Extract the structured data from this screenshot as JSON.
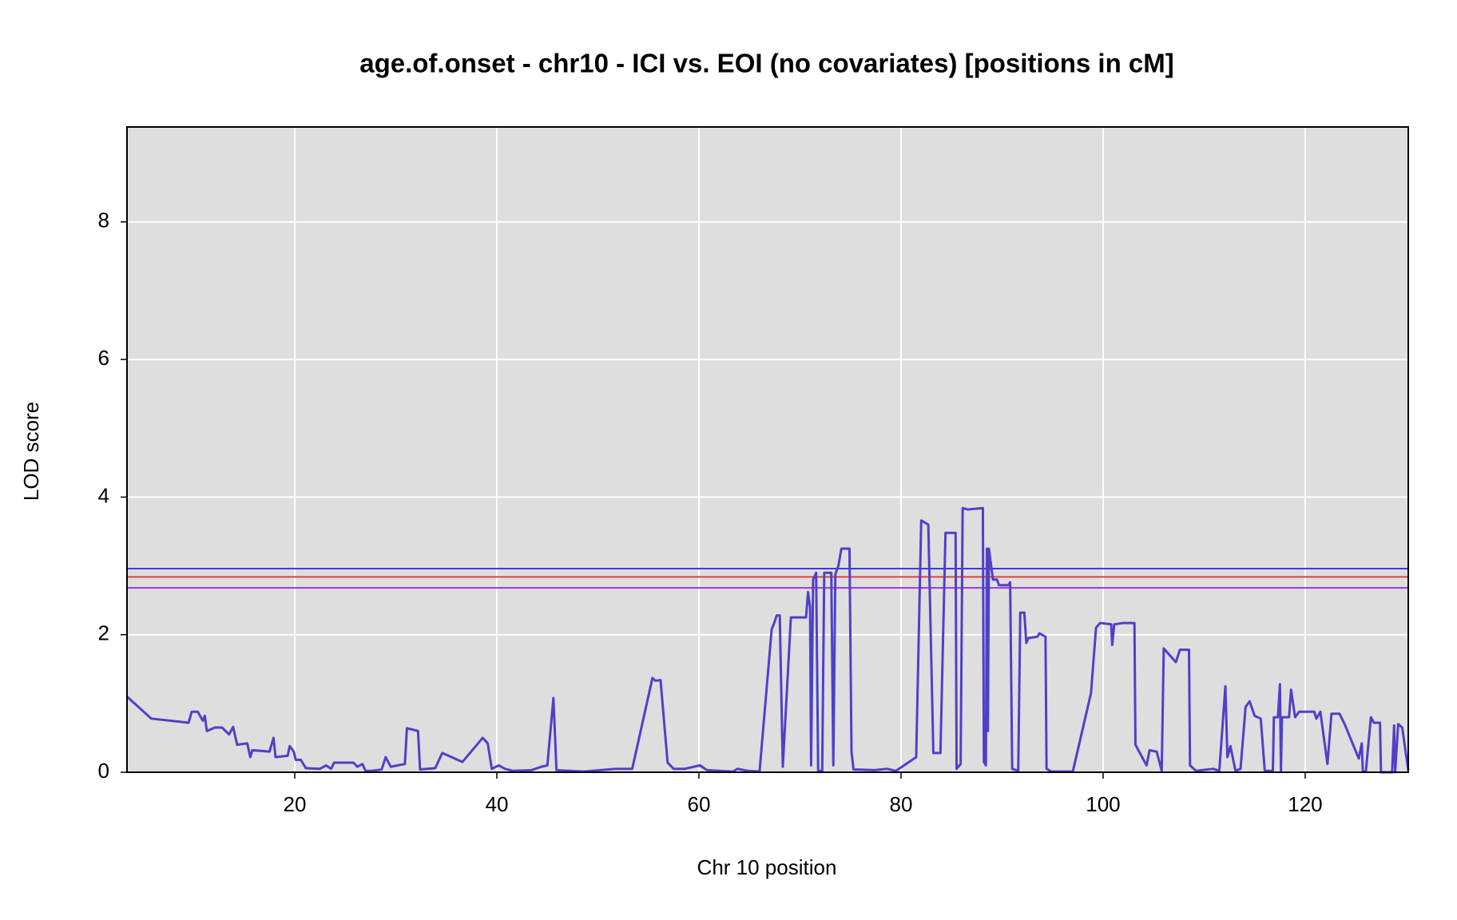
{
  "chart_data": {
    "type": "line",
    "title": "age.of.onset - chr10 - ICI vs. EOI (no covariates) [positions in cM]",
    "x_label": "Chr 10 position",
    "y_label": "LOD score",
    "xlim": [
      3.4,
      130.2
    ],
    "ylim": [
      0,
      9.38
    ],
    "xticks": [
      20,
      40,
      60,
      80,
      100,
      120
    ],
    "yticks": [
      0,
      2,
      4,
      6,
      8
    ],
    "grid": true,
    "background": "#dedede",
    "thresholds": [
      {
        "value": 2.96,
        "color": "#3a3ae0"
      },
      {
        "value": 2.84,
        "color": "#e0403a"
      },
      {
        "value": 2.68,
        "color": "#9a3ae0"
      }
    ],
    "series": [
      {
        "name": "age.of.onset",
        "color": "#5040c8",
        "x": [
          3.4,
          5.8,
          9.5,
          9.8,
          10.4,
          10.9,
          11.1,
          11.3,
          12.1,
          12.8,
          13.5,
          13.9,
          14.3,
          15.3,
          15.6,
          15.8,
          17.5,
          17.9,
          18.1,
          19.3,
          19.5,
          19.9,
          20.1,
          20.6,
          21.1,
          22.5,
          23.1,
          23.6,
          23.9,
          25.8,
          26.2,
          26.7,
          27,
          27.6,
          28.6,
          29,
          29.5,
          30.9,
          31.1,
          32.2,
          32.4,
          33.9,
          34.6,
          36.6,
          38.6,
          39.1,
          39.5,
          40.2,
          40.8,
          41.6,
          43.4,
          44.4,
          45,
          45.6,
          45.9,
          48.6,
          51.8,
          53.4,
          55.4,
          55.7,
          56.2,
          56.9,
          57.5,
          58.6,
          60.1,
          60.8,
          63.4,
          63.8,
          64.8,
          66,
          67.2,
          67.4,
          67.7,
          68,
          68.3,
          69.1,
          70.6,
          70.8,
          71,
          71.1,
          71.3,
          71.6,
          71.8,
          72.2,
          72.4,
          73.1,
          73.3,
          73.5,
          73.8,
          74.1,
          74.9,
          75.1,
          75.3,
          77.4,
          78.6,
          79.5,
          81.5,
          82,
          82.7,
          83.2,
          83.9,
          84.4,
          85.4,
          85.5,
          85.9,
          86.1,
          86.6,
          88.1,
          88.2,
          88.4,
          88.5,
          88.6,
          88.7,
          89.1,
          89.5,
          89.7,
          90.6,
          90.8,
          91,
          91.6,
          91.8,
          92.2,
          92.4,
          92.6,
          93.5,
          93.7,
          94.3,
          94.4,
          94.9,
          97,
          98.8,
          99.3,
          99.7,
          100.8,
          100.9,
          101.1,
          102,
          103.1,
          103.2,
          104.3,
          104.6,
          105.3,
          105.8,
          106,
          107.2,
          107.6,
          108.5,
          108.6,
          109.2,
          110.9,
          111.5,
          112.1,
          112.3,
          112.6,
          113.1,
          113.6,
          114.1,
          114.5,
          115,
          115.6,
          116,
          116.8,
          116.9,
          117.3,
          117.5,
          117.6,
          117.7,
          118.4,
          118.6,
          119,
          119.4,
          120.9,
          121.1,
          121.5,
          122.2,
          122.6,
          123.4,
          123.9,
          125.3,
          125.6,
          125.7,
          126,
          126.5,
          126.8,
          127.4,
          127.5,
          128.6,
          128.8,
          128.9,
          129.2,
          129.6,
          130.2
        ],
        "values": [
          1.1,
          0.78,
          0.72,
          0.88,
          0.88,
          0.75,
          0.82,
          0.6,
          0.65,
          0.65,
          0.55,
          0.66,
          0.4,
          0.42,
          0.22,
          0.32,
          0.3,
          0.5,
          0.22,
          0.24,
          0.38,
          0.3,
          0.18,
          0.18,
          0.06,
          0.05,
          0.1,
          0.05,
          0.14,
          0.14,
          0.08,
          0.12,
          0.02,
          0.02,
          0.04,
          0.22,
          0.08,
          0.12,
          0.64,
          0.6,
          0.04,
          0.06,
          0.28,
          0.15,
          0.5,
          0.42,
          0.05,
          0.1,
          0.05,
          0.02,
          0.03,
          0.08,
          0.1,
          1.08,
          0.03,
          0.01,
          0.05,
          0.05,
          1.37,
          1.33,
          1.34,
          0.14,
          0.05,
          0.05,
          0.1,
          0.03,
          0.01,
          0.05,
          0.02,
          0.01,
          2.08,
          2.15,
          2.28,
          2.28,
          0.08,
          2.25,
          2.25,
          2.62,
          2.4,
          0.1,
          2.8,
          2.9,
          0.02,
          0.02,
          2.9,
          2.9,
          0.1,
          2.88,
          3,
          3.25,
          3.25,
          0.3,
          0.04,
          0.03,
          0.05,
          0.02,
          0.22,
          3.66,
          3.6,
          0.28,
          0.28,
          3.48,
          3.48,
          0.05,
          0.12,
          3.84,
          3.82,
          3.84,
          0.15,
          0.1,
          3.25,
          0.6,
          3.25,
          2.8,
          2.8,
          2.72,
          2.72,
          2.76,
          0.05,
          0.02,
          2.32,
          2.32,
          1.88,
          1.95,
          1.97,
          2.02,
          1.97,
          0.05,
          0.01,
          0.01,
          1.15,
          2.1,
          2.17,
          2.15,
          1.85,
          2.15,
          2.17,
          2.17,
          0.4,
          0.1,
          0.32,
          0.3,
          0.02,
          1.8,
          1.6,
          1.78,
          1.78,
          0.1,
          0.02,
          0.05,
          0.02,
          1.25,
          0.22,
          0.38,
          0.02,
          0.05,
          0.95,
          1.03,
          0.82,
          0.78,
          0.02,
          0.02,
          0.8,
          0.8,
          1.28,
          0.02,
          0.8,
          0.8,
          1.2,
          0.8,
          0.88,
          0.88,
          0.78,
          0.88,
          0.12,
          0.85,
          0.85,
          0.7,
          0.2,
          0.42,
          0.01,
          0.01,
          0.8,
          0.72,
          0.72,
          0,
          0,
          0.68,
          0,
          0.7,
          0.65,
          0.03
        ]
      }
    ]
  }
}
